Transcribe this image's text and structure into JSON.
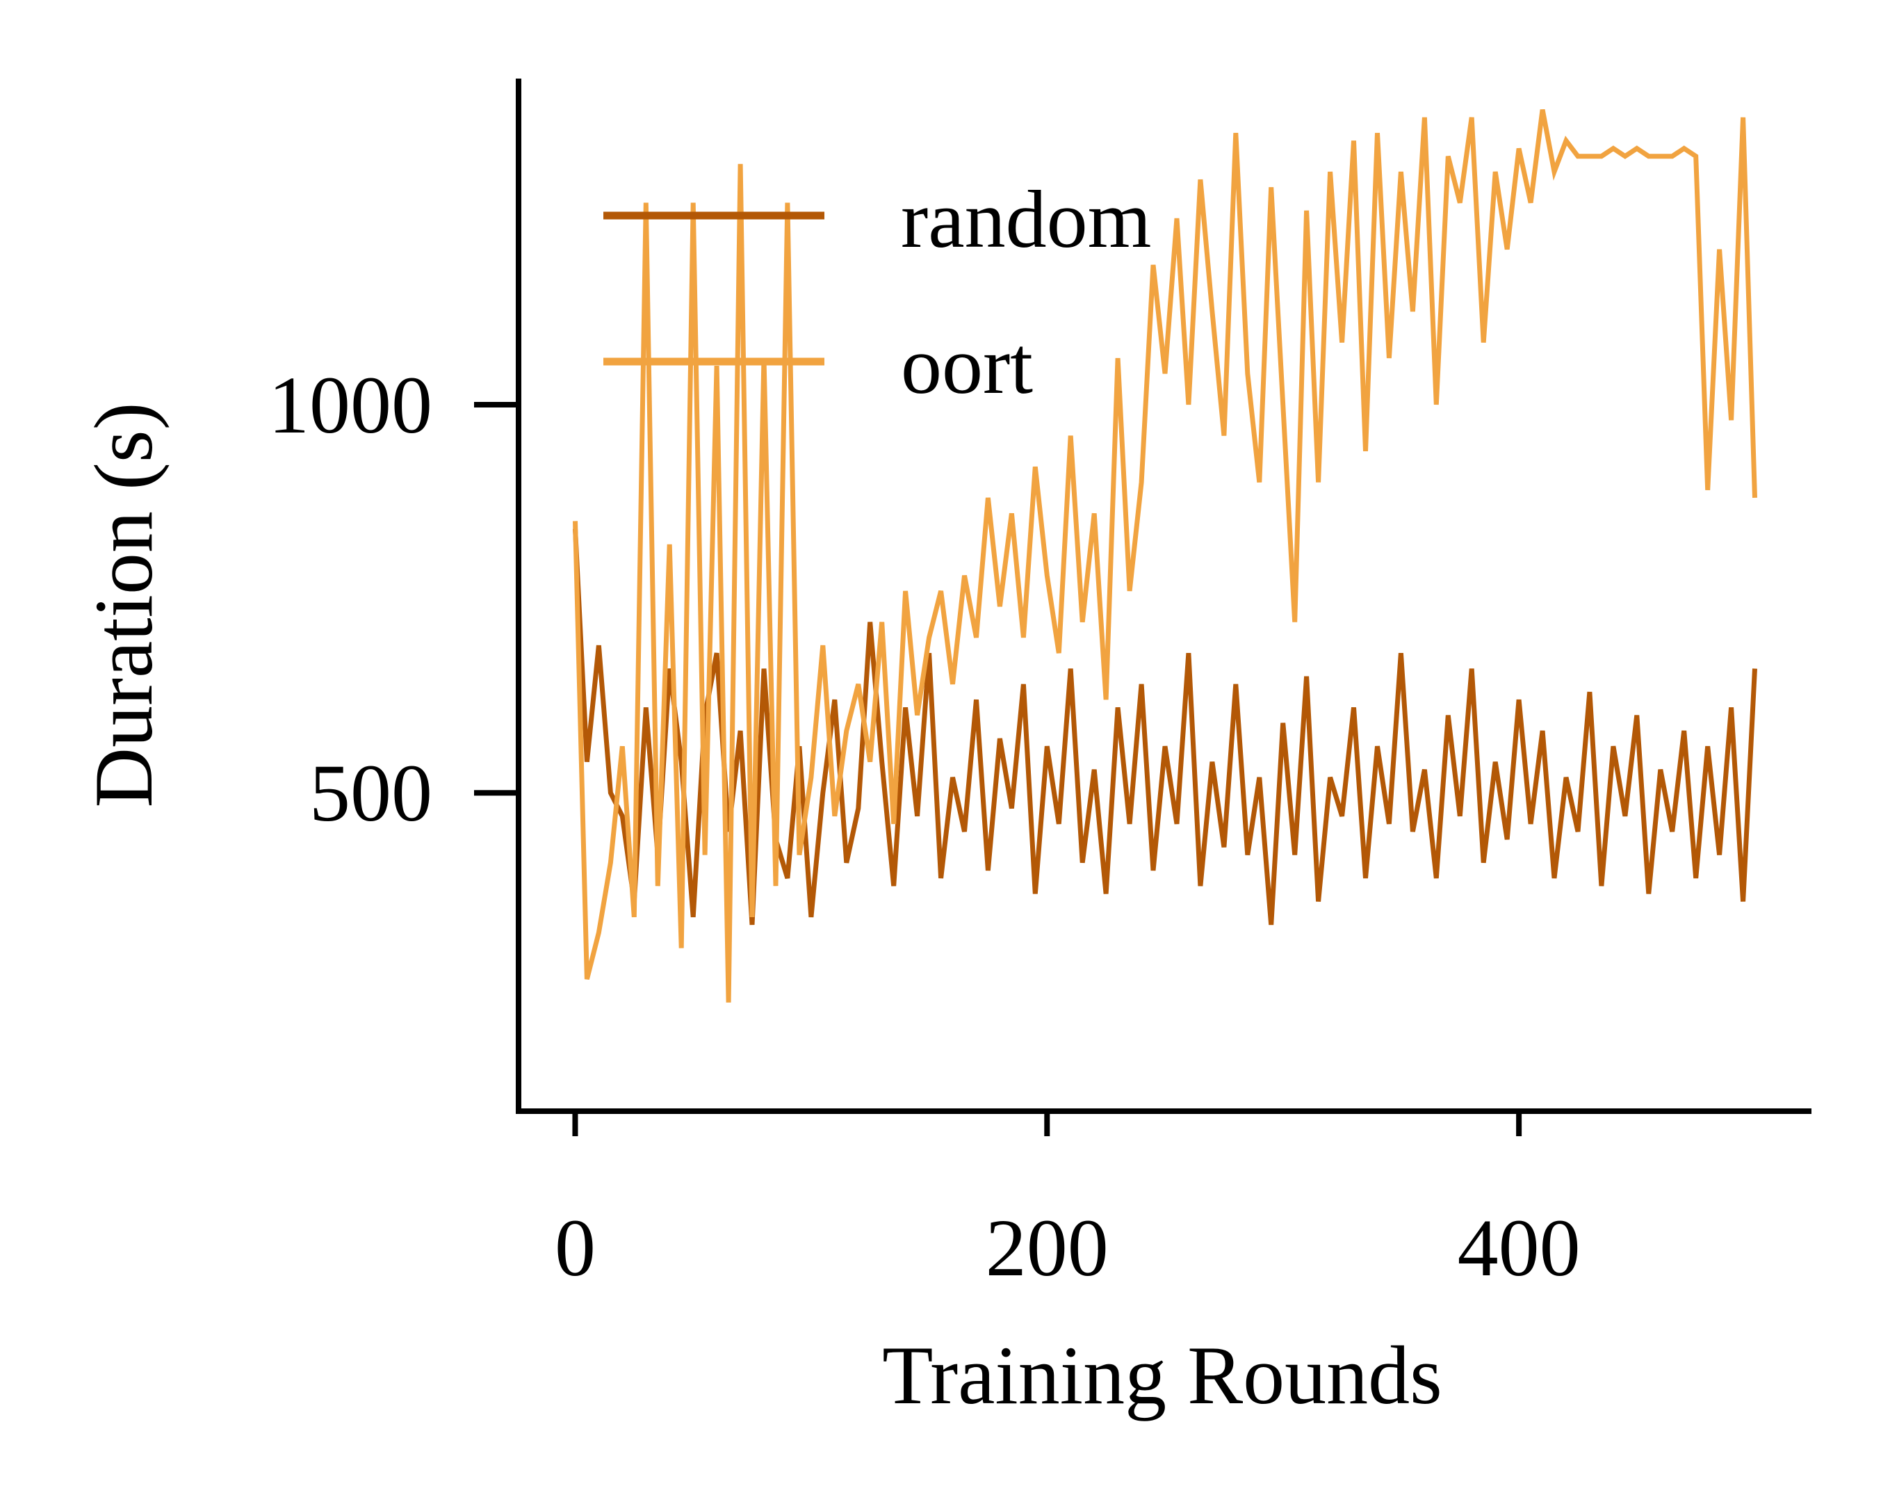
{
  "colors": {
    "random": "#b35806",
    "oort": "#f1a340",
    "axis": "#000000",
    "background": "#ffffff"
  },
  "chart_data": {
    "type": "line",
    "title": "",
    "xlabel": "Training Rounds",
    "ylabel": "Duration (s)",
    "xlim": [
      -24,
      524
    ],
    "ylim": [
      90,
      1420
    ],
    "xticks": [
      0,
      200,
      400
    ],
    "xtick_labels": [
      "0",
      "200",
      "400"
    ],
    "yticks": [
      500,
      1000
    ],
    "ytick_labels": [
      "500",
      "1000"
    ],
    "grid": false,
    "legend_position": "top-left",
    "series": [
      {
        "name": "random",
        "color": "#b35806",
        "x": [
          0,
          5,
          10,
          15,
          20,
          25,
          30,
          35,
          40,
          45,
          50,
          55,
          60,
          65,
          70,
          75,
          80,
          85,
          90,
          95,
          100,
          105,
          110,
          115,
          120,
          125,
          130,
          135,
          140,
          145,
          150,
          155,
          160,
          165,
          170,
          175,
          180,
          185,
          190,
          195,
          200,
          205,
          210,
          215,
          220,
          225,
          230,
          235,
          240,
          245,
          250,
          255,
          260,
          265,
          270,
          275,
          280,
          285,
          290,
          295,
          300,
          305,
          310,
          315,
          320,
          325,
          330,
          335,
          340,
          345,
          350,
          355,
          360,
          365,
          370,
          375,
          380,
          385,
          390,
          395,
          400,
          405,
          410,
          415,
          420,
          425,
          430,
          435,
          440,
          445,
          450,
          455,
          460,
          465,
          470,
          475,
          480,
          485,
          490,
          495,
          500
        ],
        "values": [
          840,
          540,
          690,
          500,
          470,
          360,
          610,
          420,
          660,
          540,
          340,
          600,
          680,
          450,
          580,
          330,
          660,
          440,
          390,
          560,
          340,
          500,
          620,
          410,
          480,
          720,
          540,
          380,
          610,
          470,
          680,
          390,
          520,
          450,
          620,
          400,
          570,
          480,
          640,
          370,
          560,
          460,
          660,
          410,
          530,
          370,
          610,
          460,
          640,
          400,
          560,
          460,
          680,
          380,
          540,
          430,
          640,
          420,
          520,
          330,
          590,
          420,
          650,
          360,
          520,
          470,
          610,
          390,
          560,
          460,
          680,
          450,
          530,
          390,
          600,
          470,
          660,
          410,
          540,
          440,
          620,
          460,
          580,
          390,
          520,
          450,
          630,
          380,
          560,
          470,
          600,
          370,
          530,
          450,
          580,
          390,
          560,
          420,
          610,
          360,
          660
        ]
      },
      {
        "name": "oort",
        "color": "#f1a340",
        "x": [
          0,
          5,
          10,
          15,
          20,
          25,
          30,
          35,
          40,
          45,
          50,
          55,
          60,
          65,
          70,
          75,
          80,
          85,
          90,
          95,
          100,
          105,
          110,
          115,
          120,
          125,
          130,
          135,
          140,
          145,
          150,
          155,
          160,
          165,
          170,
          175,
          180,
          185,
          190,
          195,
          200,
          205,
          210,
          215,
          220,
          225,
          230,
          235,
          240,
          245,
          250,
          255,
          260,
          265,
          270,
          275,
          280,
          285,
          290,
          295,
          300,
          305,
          310,
          315,
          320,
          325,
          330,
          335,
          340,
          345,
          350,
          355,
          360,
          365,
          370,
          375,
          380,
          385,
          390,
          395,
          400,
          405,
          410,
          415,
          420,
          425,
          430,
          435,
          440,
          445,
          450,
          455,
          460,
          465,
          470,
          475,
          480,
          485,
          490,
          495,
          500
        ],
        "values": [
          850,
          260,
          320,
          410,
          560,
          340,
          1260,
          380,
          820,
          300,
          1260,
          420,
          1050,
          230,
          1310,
          340,
          1060,
          380,
          1260,
          420,
          520,
          690,
          470,
          580,
          640,
          540,
          720,
          460,
          760,
          600,
          700,
          760,
          640,
          780,
          700,
          880,
          740,
          860,
          700,
          920,
          780,
          680,
          960,
          720,
          860,
          620,
          1060,
          760,
          900,
          1180,
          1040,
          1240,
          1000,
          1290,
          1120,
          960,
          1350,
          1040,
          900,
          1280,
          1000,
          720,
          1250,
          900,
          1300,
          1080,
          1340,
          940,
          1350,
          1060,
          1300,
          1120,
          1370,
          1000,
          1320,
          1260,
          1370,
          1080,
          1300,
          1200,
          1330,
          1260,
          1380,
          1300,
          1340,
          1320,
          1320,
          1320,
          1330,
          1320,
          1330,
          1320,
          1320,
          1320,
          1330,
          1320,
          890,
          1200,
          980,
          1370,
          880
        ]
      }
    ]
  }
}
